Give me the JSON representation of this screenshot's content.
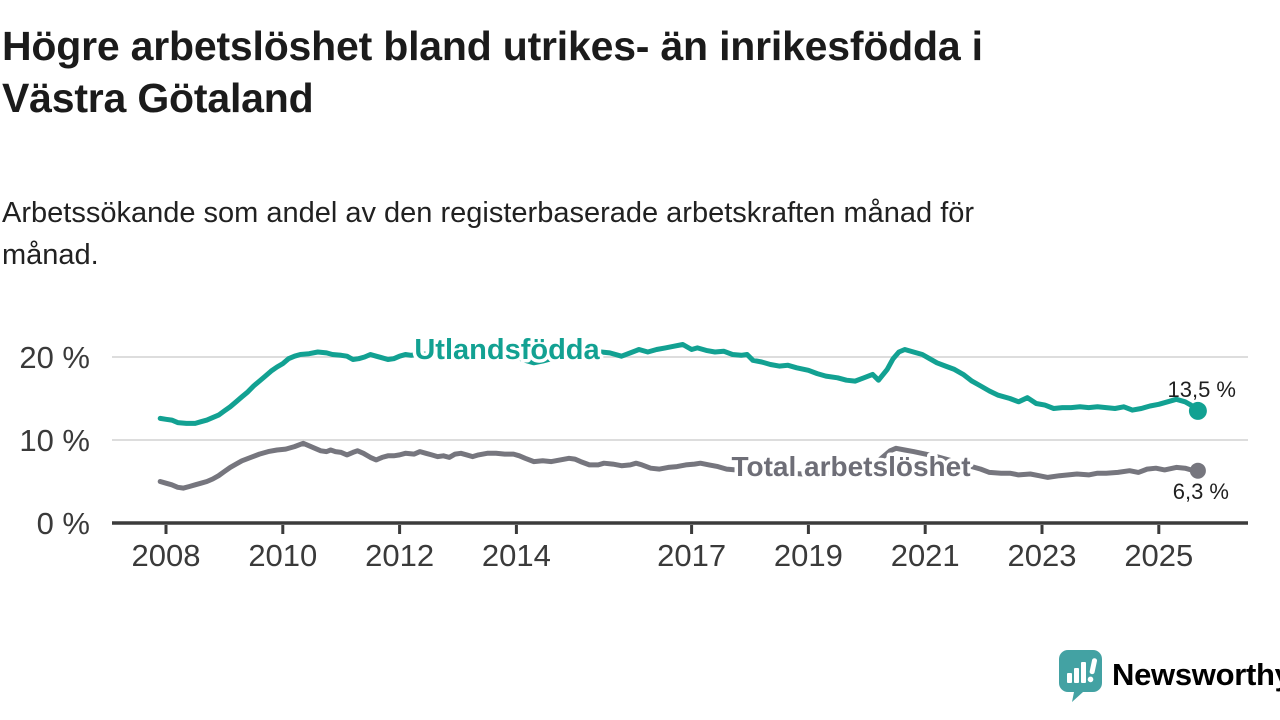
{
  "title": {
    "lines": [
      "Högre arbetslöshet bland utrikes- än inrikesfödda i",
      "Västra Götaland"
    ]
  },
  "subtitle": {
    "lines": [
      "Arbetssökande som andel av den registerbaserade arbetskraften månad för",
      "månad."
    ]
  },
  "branding": {
    "logo_text": "Newsworthy",
    "logo_color": "#3f9fa1",
    "logo_icon": "speech-bubble-bar-chart-icon",
    "logo_icon_color": "#43a2a3"
  },
  "chart_data": {
    "type": "line",
    "grid": "horizontal",
    "legend_position": "inline-labels",
    "x_axis": {
      "tick_values": [
        2008,
        2010,
        2012,
        2014,
        2017,
        2019,
        2021,
        2023,
        2025
      ],
      "tick_labels": [
        "2008",
        "2010",
        "2012",
        "2014",
        "2017",
        "2019",
        "2021",
        "2023",
        "2025"
      ],
      "range": [
        2007.8,
        2026.2
      ]
    },
    "y_axis": {
      "tick_values": [
        0,
        10,
        20
      ],
      "tick_labels": [
        "0 %",
        "10 %",
        "20 %"
      ],
      "range": [
        0,
        24
      ],
      "unit": "%"
    },
    "series": [
      {
        "name": "Utlandsfödda",
        "color": "#12a192",
        "end_label": "13,5 %",
        "end_value": 13.5,
        "points": [
          [
            2007.9,
            12.6
          ],
          [
            2008.0,
            12.5
          ],
          [
            2008.1,
            12.4
          ],
          [
            2008.2,
            12.1
          ],
          [
            2008.35,
            12.0
          ],
          [
            2008.5,
            12.0
          ],
          [
            2008.6,
            12.2
          ],
          [
            2008.7,
            12.4
          ],
          [
            2008.8,
            12.7
          ],
          [
            2008.9,
            13.0
          ],
          [
            2009.0,
            13.5
          ],
          [
            2009.1,
            14.0
          ],
          [
            2009.2,
            14.6
          ],
          [
            2009.3,
            15.2
          ],
          [
            2009.4,
            15.8
          ],
          [
            2009.5,
            16.5
          ],
          [
            2009.6,
            17.1
          ],
          [
            2009.7,
            17.7
          ],
          [
            2009.8,
            18.3
          ],
          [
            2009.9,
            18.8
          ],
          [
            2010.0,
            19.2
          ],
          [
            2010.1,
            19.8
          ],
          [
            2010.2,
            20.1
          ],
          [
            2010.3,
            20.3
          ],
          [
            2010.45,
            20.4
          ],
          [
            2010.6,
            20.6
          ],
          [
            2010.75,
            20.5
          ],
          [
            2010.85,
            20.3
          ],
          [
            2011.0,
            20.2
          ],
          [
            2011.1,
            20.1
          ],
          [
            2011.2,
            19.7
          ],
          [
            2011.3,
            19.8
          ],
          [
            2011.4,
            20.0
          ],
          [
            2011.5,
            20.3
          ],
          [
            2011.6,
            20.1
          ],
          [
            2011.7,
            19.9
          ],
          [
            2011.8,
            19.7
          ],
          [
            2011.9,
            19.8
          ],
          [
            2012.0,
            20.1
          ],
          [
            2012.1,
            20.3
          ],
          [
            2012.2,
            20.2
          ],
          [
            2012.35,
            20.4
          ],
          [
            2012.5,
            20.3
          ],
          [
            2012.65,
            20.5
          ],
          [
            2012.8,
            20.5
          ],
          [
            2013.0,
            20.5
          ],
          [
            2013.2,
            20.6
          ],
          [
            2013.4,
            20.5
          ],
          [
            2013.6,
            20.4
          ],
          [
            2013.8,
            20.2
          ],
          [
            2014.0,
            20.0
          ],
          [
            2014.15,
            19.6
          ],
          [
            2014.3,
            19.3
          ],
          [
            2014.45,
            19.5
          ],
          [
            2014.6,
            19.8
          ],
          [
            2014.8,
            20.0
          ],
          [
            2015.0,
            20.2
          ],
          [
            2015.2,
            20.4
          ],
          [
            2015.45,
            20.6
          ],
          [
            2015.6,
            20.5
          ],
          [
            2015.8,
            20.1
          ],
          [
            2015.95,
            20.5
          ],
          [
            2016.1,
            20.9
          ],
          [
            2016.25,
            20.6
          ],
          [
            2016.4,
            20.9
          ],
          [
            2016.55,
            21.1
          ],
          [
            2016.7,
            21.3
          ],
          [
            2016.85,
            21.5
          ],
          [
            2017.0,
            20.9
          ],
          [
            2017.1,
            21.1
          ],
          [
            2017.25,
            20.8
          ],
          [
            2017.4,
            20.6
          ],
          [
            2017.55,
            20.7
          ],
          [
            2017.7,
            20.3
          ],
          [
            2017.85,
            20.2
          ],
          [
            2017.95,
            20.3
          ],
          [
            2018.05,
            19.6
          ],
          [
            2018.2,
            19.4
          ],
          [
            2018.35,
            19.1
          ],
          [
            2018.5,
            18.9
          ],
          [
            2018.65,
            19.0
          ],
          [
            2018.8,
            18.7
          ],
          [
            2019.0,
            18.4
          ],
          [
            2019.15,
            18.0
          ],
          [
            2019.3,
            17.7
          ],
          [
            2019.5,
            17.5
          ],
          [
            2019.65,
            17.2
          ],
          [
            2019.8,
            17.1
          ],
          [
            2019.95,
            17.5
          ],
          [
            2020.1,
            17.9
          ],
          [
            2020.2,
            17.2
          ],
          [
            2020.35,
            18.5
          ],
          [
            2020.45,
            19.8
          ],
          [
            2020.55,
            20.6
          ],
          [
            2020.65,
            20.9
          ],
          [
            2020.8,
            20.6
          ],
          [
            2020.95,
            20.3
          ],
          [
            2021.05,
            19.9
          ],
          [
            2021.2,
            19.3
          ],
          [
            2021.35,
            18.9
          ],
          [
            2021.5,
            18.5
          ],
          [
            2021.65,
            17.9
          ],
          [
            2021.8,
            17.1
          ],
          [
            2021.95,
            16.5
          ],
          [
            2022.1,
            15.9
          ],
          [
            2022.25,
            15.4
          ],
          [
            2022.45,
            15.0
          ],
          [
            2022.6,
            14.6
          ],
          [
            2022.75,
            15.1
          ],
          [
            2022.9,
            14.4
          ],
          [
            2023.05,
            14.2
          ],
          [
            2023.2,
            13.8
          ],
          [
            2023.35,
            13.9
          ],
          [
            2023.5,
            13.9
          ],
          [
            2023.65,
            14.0
          ],
          [
            2023.8,
            13.9
          ],
          [
            2023.95,
            14.0
          ],
          [
            2024.1,
            13.9
          ],
          [
            2024.25,
            13.8
          ],
          [
            2024.4,
            14.0
          ],
          [
            2024.55,
            13.6
          ],
          [
            2024.7,
            13.8
          ],
          [
            2024.85,
            14.1
          ],
          [
            2025.0,
            14.3
          ],
          [
            2025.15,
            14.6
          ],
          [
            2025.3,
            14.9
          ],
          [
            2025.45,
            14.6
          ],
          [
            2025.55,
            14.2
          ],
          [
            2025.67,
            13.5
          ]
        ]
      },
      {
        "name": "Total arbetslöshet",
        "color": "#76767e",
        "end_label": "6,3 %",
        "end_value": 6.3,
        "points": [
          [
            2007.9,
            5.0
          ],
          [
            2008.0,
            4.8
          ],
          [
            2008.1,
            4.6
          ],
          [
            2008.2,
            4.3
          ],
          [
            2008.3,
            4.2
          ],
          [
            2008.4,
            4.4
          ],
          [
            2008.5,
            4.6
          ],
          [
            2008.6,
            4.8
          ],
          [
            2008.7,
            5.0
          ],
          [
            2008.8,
            5.3
          ],
          [
            2008.9,
            5.7
          ],
          [
            2009.0,
            6.2
          ],
          [
            2009.1,
            6.7
          ],
          [
            2009.2,
            7.1
          ],
          [
            2009.3,
            7.5
          ],
          [
            2009.45,
            7.9
          ],
          [
            2009.6,
            8.3
          ],
          [
            2009.75,
            8.6
          ],
          [
            2009.9,
            8.8
          ],
          [
            2010.05,
            8.9
          ],
          [
            2010.2,
            9.2
          ],
          [
            2010.35,
            9.6
          ],
          [
            2010.45,
            9.3
          ],
          [
            2010.55,
            9.0
          ],
          [
            2010.65,
            8.7
          ],
          [
            2010.75,
            8.6
          ],
          [
            2010.82,
            8.8
          ],
          [
            2010.9,
            8.6
          ],
          [
            2011.0,
            8.5
          ],
          [
            2011.1,
            8.2
          ],
          [
            2011.2,
            8.5
          ],
          [
            2011.28,
            8.7
          ],
          [
            2011.38,
            8.4
          ],
          [
            2011.5,
            7.9
          ],
          [
            2011.6,
            7.6
          ],
          [
            2011.7,
            7.9
          ],
          [
            2011.8,
            8.1
          ],
          [
            2011.9,
            8.1
          ],
          [
            2012.0,
            8.2
          ],
          [
            2012.1,
            8.4
          ],
          [
            2012.25,
            8.3
          ],
          [
            2012.35,
            8.6
          ],
          [
            2012.45,
            8.4
          ],
          [
            2012.55,
            8.2
          ],
          [
            2012.65,
            8.0
          ],
          [
            2012.75,
            8.1
          ],
          [
            2012.85,
            7.9
          ],
          [
            2012.95,
            8.3
          ],
          [
            2013.05,
            8.4
          ],
          [
            2013.15,
            8.2
          ],
          [
            2013.25,
            8.0
          ],
          [
            2013.35,
            8.2
          ],
          [
            2013.5,
            8.4
          ],
          [
            2013.65,
            8.4
          ],
          [
            2013.8,
            8.3
          ],
          [
            2013.95,
            8.3
          ],
          [
            2014.05,
            8.1
          ],
          [
            2014.15,
            7.8
          ],
          [
            2014.3,
            7.4
          ],
          [
            2014.45,
            7.5
          ],
          [
            2014.6,
            7.4
          ],
          [
            2014.75,
            7.6
          ],
          [
            2014.9,
            7.8
          ],
          [
            2015.0,
            7.7
          ],
          [
            2015.1,
            7.4
          ],
          [
            2015.25,
            7.0
          ],
          [
            2015.4,
            7.0
          ],
          [
            2015.5,
            7.2
          ],
          [
            2015.65,
            7.1
          ],
          [
            2015.8,
            6.9
          ],
          [
            2015.95,
            7.0
          ],
          [
            2016.05,
            7.2
          ],
          [
            2016.15,
            7.0
          ],
          [
            2016.3,
            6.6
          ],
          [
            2016.45,
            6.5
          ],
          [
            2016.6,
            6.7
          ],
          [
            2016.75,
            6.8
          ],
          [
            2016.9,
            7.0
          ],
          [
            2017.05,
            7.1
          ],
          [
            2017.15,
            7.2
          ],
          [
            2017.3,
            7.0
          ],
          [
            2017.45,
            6.8
          ],
          [
            2017.6,
            6.5
          ],
          [
            2017.75,
            6.4
          ],
          [
            2017.9,
            6.3
          ],
          [
            2018.1,
            6.2
          ],
          [
            2018.3,
            6.1
          ],
          [
            2018.5,
            6.0
          ],
          [
            2018.7,
            6.0
          ],
          [
            2018.9,
            5.9
          ],
          [
            2019.1,
            5.9
          ],
          [
            2019.3,
            6.0
          ],
          [
            2019.5,
            6.1
          ],
          [
            2019.7,
            6.2
          ],
          [
            2019.9,
            6.4
          ],
          [
            2020.1,
            6.7
          ],
          [
            2020.25,
            7.8
          ],
          [
            2020.4,
            8.7
          ],
          [
            2020.5,
            9.0
          ],
          [
            2020.65,
            8.8
          ],
          [
            2020.8,
            8.6
          ],
          [
            2021.0,
            8.3
          ],
          [
            2021.2,
            8.0
          ],
          [
            2021.4,
            7.6
          ],
          [
            2021.6,
            7.2
          ],
          [
            2021.8,
            6.8
          ],
          [
            2021.95,
            6.5
          ],
          [
            2022.1,
            6.1
          ],
          [
            2022.3,
            6.0
          ],
          [
            2022.45,
            6.0
          ],
          [
            2022.6,
            5.8
          ],
          [
            2022.8,
            5.9
          ],
          [
            2022.95,
            5.7
          ],
          [
            2023.1,
            5.5
          ],
          [
            2023.3,
            5.7
          ],
          [
            2023.45,
            5.8
          ],
          [
            2023.6,
            5.9
          ],
          [
            2023.8,
            5.8
          ],
          [
            2023.95,
            6.0
          ],
          [
            2024.1,
            6.0
          ],
          [
            2024.3,
            6.1
          ],
          [
            2024.5,
            6.3
          ],
          [
            2024.65,
            6.1
          ],
          [
            2024.8,
            6.5
          ],
          [
            2024.95,
            6.6
          ],
          [
            2025.1,
            6.4
          ],
          [
            2025.3,
            6.7
          ],
          [
            2025.45,
            6.6
          ],
          [
            2025.55,
            6.4
          ],
          [
            2025.67,
            6.3
          ]
        ]
      }
    ]
  }
}
